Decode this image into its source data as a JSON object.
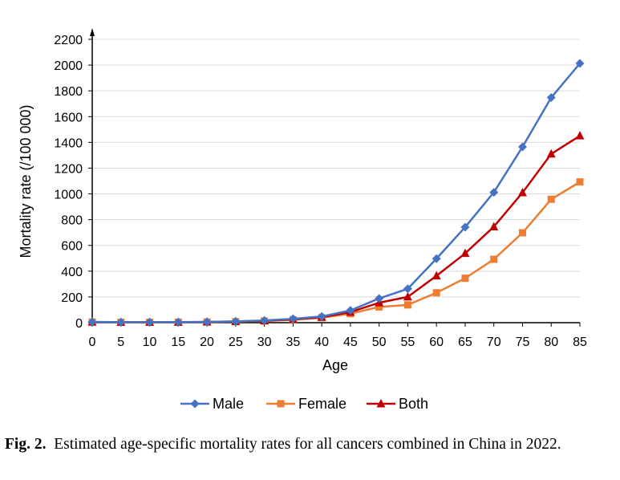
{
  "chart_data": {
    "type": "line",
    "x": [
      0,
      5,
      10,
      15,
      20,
      25,
      30,
      35,
      40,
      45,
      50,
      55,
      60,
      65,
      70,
      75,
      80,
      85
    ],
    "series": [
      {
        "name": "Male",
        "color": "#4472C4",
        "marker": "diamond",
        "values": [
          6,
          4,
          4,
          5,
          6,
          10,
          17,
          30,
          48,
          95,
          188,
          263,
          497,
          742,
          1012,
          1365,
          1748,
          2013
        ]
      },
      {
        "name": "Female",
        "color": "#ED7D31",
        "marker": "square",
        "values": [
          5,
          3,
          3,
          4,
          5,
          8,
          13,
          22,
          38,
          70,
          122,
          138,
          232,
          345,
          492,
          698,
          958,
          1093
        ]
      },
      {
        "name": "Both",
        "color": "#C00000",
        "marker": "triangle",
        "values": [
          5,
          4,
          4,
          4,
          6,
          9,
          15,
          26,
          43,
          82,
          155,
          200,
          364,
          538,
          745,
          1010,
          1310,
          1451
        ]
      }
    ],
    "title": "",
    "xlabel": "Age",
    "ylabel": "Mortality rate (/100 000)",
    "ylim": [
      0,
      2200
    ],
    "yticks": [
      0,
      200,
      400,
      600,
      800,
      1000,
      1200,
      1400,
      1600,
      1800,
      2000,
      2200
    ],
    "xticks": [
      0,
      5,
      10,
      15,
      20,
      25,
      30,
      35,
      40,
      45,
      50,
      55,
      60,
      65,
      70,
      75,
      80,
      85
    ],
    "grid": true,
    "legend": "bottom"
  },
  "caption": {
    "label": "Fig. 2.",
    "text": "Estimated age-specific mortality rates for all cancers combined in China in 2022."
  }
}
